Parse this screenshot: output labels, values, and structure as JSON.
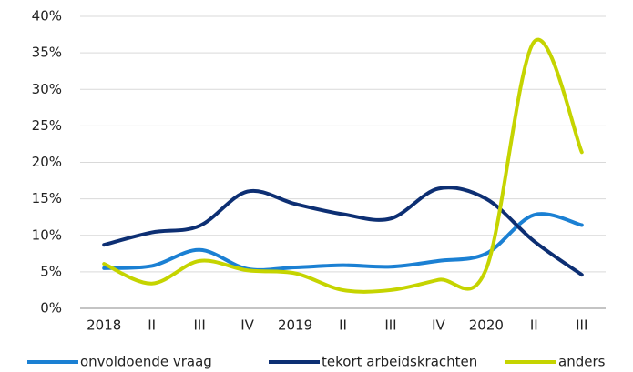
{
  "chart_data": {
    "type": "line",
    "categories": [
      "2018",
      "II",
      "III",
      "IV",
      "2019",
      "II",
      "III",
      "IV",
      "2020",
      "II",
      "III"
    ],
    "series": [
      {
        "name": "onvoldoende vraag",
        "color": "#1b80d3",
        "values": [
          5.5,
          5.8,
          8.0,
          5.4,
          5.6,
          5.9,
          5.7,
          6.5,
          7.5,
          12.8,
          11.4
        ]
      },
      {
        "name": "tekort arbeidskrachten",
        "color": "#0d2f73",
        "values": [
          8.7,
          10.4,
          11.3,
          16.0,
          14.3,
          12.9,
          12.3,
          16.4,
          15.0,
          9.2,
          4.6
        ]
      },
      {
        "name": "anders",
        "color": "#c5d400",
        "values": [
          6.1,
          3.4,
          6.5,
          5.2,
          4.8,
          2.5,
          2.5,
          3.9,
          5.4,
          36.5,
          21.4
        ]
      }
    ],
    "ylim": [
      0,
      40
    ],
    "yticks": [
      {
        "value": 0,
        "label": "0%"
      },
      {
        "value": 5,
        "label": "5%"
      },
      {
        "value": 10,
        "label": "10%"
      },
      {
        "value": 15,
        "label": "15%"
      },
      {
        "value": 20,
        "label": "20%"
      },
      {
        "value": 25,
        "label": "25%"
      },
      {
        "value": 30,
        "label": "30%"
      },
      {
        "value": 35,
        "label": "35%"
      },
      {
        "value": 40,
        "label": "40%"
      }
    ],
    "grid": true,
    "smooth": true,
    "legend": "bottom"
  }
}
